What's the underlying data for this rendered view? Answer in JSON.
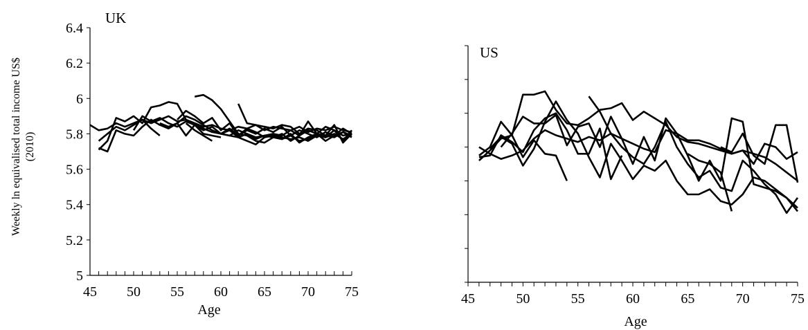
{
  "chart_data": [
    {
      "type": "line",
      "title": "UK",
      "xlabel": "Age",
      "ylabel": "Weekly ln equivalised total income US$ (2010)",
      "xlim": [
        45,
        75
      ],
      "ylim": [
        5,
        6.4
      ],
      "xticks": [
        "45",
        "50",
        "55",
        "60",
        "65",
        "70",
        "75"
      ],
      "yticks": [
        "5",
        "5.2",
        "5.4",
        "5.6",
        "5.8",
        "6",
        "6.2",
        "6.4"
      ],
      "grid": false,
      "series": [
        {
          "x": [
            45,
            46,
            47,
            48,
            49,
            50,
            51,
            52,
            53,
            54,
            55,
            56,
            57,
            58,
            59,
            60,
            61,
            62,
            63,
            64,
            65,
            66,
            67,
            68,
            69,
            70,
            71,
            72,
            73,
            74,
            75
          ],
          "values": [
            5.85,
            5.82,
            5.83,
            5.86,
            5.84,
            5.86,
            5.88,
            5.86,
            5.88,
            5.9,
            5.87,
            5.88,
            5.86,
            5.84,
            5.85,
            5.83,
            5.82,
            5.84,
            5.83,
            5.85,
            5.82,
            5.84,
            5.83,
            5.82,
            5.84,
            5.81,
            5.83,
            5.82,
            5.84,
            5.82,
            5.81
          ]
        },
        {
          "x": [
            46,
            47,
            48,
            49,
            50,
            51,
            52,
            53,
            54,
            55,
            56,
            57,
            58,
            59,
            60,
            61,
            62,
            63,
            64,
            65,
            66,
            67,
            68,
            69,
            70,
            71,
            72,
            73,
            74,
            75
          ],
          "values": [
            5.72,
            5.7,
            5.82,
            5.8,
            5.79,
            5.84,
            5.88,
            5.85,
            5.83,
            5.86,
            5.9,
            5.88,
            5.85,
            5.82,
            5.8,
            5.79,
            5.82,
            5.8,
            5.78,
            5.79,
            5.8,
            5.78,
            5.77,
            5.78,
            5.76,
            5.79,
            5.78,
            5.8,
            5.77,
            5.8
          ]
        },
        {
          "x": [
            46,
            47,
            48,
            49,
            50,
            51,
            52,
            53
          ],
          "values": [
            5.76,
            5.8,
            5.84,
            5.82,
            5.85,
            5.88,
            5.83,
            5.79
          ]
        },
        {
          "x": [
            46,
            47,
            48,
            49,
            50,
            51,
            52,
            53,
            54,
            55,
            56,
            57,
            58,
            59,
            60
          ],
          "values": [
            5.71,
            5.76,
            5.89,
            5.87,
            5.9,
            5.86,
            5.95,
            5.96,
            5.98,
            5.97,
            5.88,
            5.85,
            5.8,
            5.79,
            5.78
          ]
        },
        {
          "x": [
            50,
            51,
            52,
            53,
            54,
            55,
            56,
            57,
            58,
            59,
            60,
            61,
            62,
            63,
            64,
            65,
            66,
            67,
            68,
            69,
            70,
            71,
            72,
            73,
            74,
            75
          ],
          "values": [
            5.82,
            5.9,
            5.87,
            5.89,
            5.86,
            5.84,
            5.87,
            5.85,
            5.82,
            5.84,
            5.8,
            5.83,
            5.79,
            5.82,
            5.8,
            5.83,
            5.81,
            5.84,
            5.79,
            5.82,
            5.8,
            5.78,
            5.81,
            5.79,
            5.83,
            5.8
          ]
        },
        {
          "x": [
            53,
            54,
            55,
            56,
            57,
            58,
            59,
            60,
            61,
            62,
            63,
            64,
            65,
            66,
            67,
            68,
            69,
            70,
            71,
            72,
            73,
            74,
            75
          ],
          "values": [
            5.86,
            5.84,
            5.86,
            5.79,
            5.85,
            5.83,
            5.81,
            5.8,
            5.82,
            5.78,
            5.8,
            5.77,
            5.79,
            5.78,
            5.8,
            5.76,
            5.79,
            5.82,
            5.8,
            5.78,
            5.82,
            5.79,
            5.8
          ]
        },
        {
          "x": [
            55,
            56,
            57,
            58,
            59,
            60,
            61,
            62,
            63,
            64,
            65,
            66,
            67,
            68,
            69,
            70,
            71,
            72,
            73,
            74,
            75
          ],
          "values": [
            5.88,
            5.93,
            5.9,
            5.86,
            5.89,
            5.82,
            5.86,
            5.79,
            5.83,
            5.81,
            5.78,
            5.8,
            5.79,
            5.82,
            5.79,
            5.87,
            5.8,
            5.84,
            5.82,
            5.76,
            5.82
          ]
        },
        {
          "x": [
            57,
            58,
            59,
            60,
            61,
            62,
            63,
            64,
            65,
            66,
            67,
            68,
            69,
            70,
            71,
            72,
            73,
            74,
            75
          ],
          "values": [
            6.01,
            6.02,
            5.99,
            5.94,
            5.87,
            5.8,
            5.79,
            5.76,
            5.75,
            5.78,
            5.77,
            5.79,
            5.76,
            5.77,
            5.8,
            5.79,
            5.78,
            5.81,
            5.79
          ]
        },
        {
          "x": [
            56,
            57,
            58,
            59
          ],
          "values": [
            5.86,
            5.82,
            5.79,
            5.76
          ]
        },
        {
          "x": [
            62,
            63,
            64,
            65,
            66,
            67,
            68,
            69,
            70,
            71,
            72,
            73,
            74,
            75
          ],
          "values": [
            5.97,
            5.86,
            5.85,
            5.84,
            5.83,
            5.85,
            5.84,
            5.8,
            5.83,
            5.82,
            5.79,
            5.85,
            5.75,
            5.8
          ]
        },
        {
          "x": [
            60,
            61,
            62,
            63,
            64,
            65,
            66,
            67,
            68,
            69,
            70,
            71,
            72,
            73,
            74,
            75
          ],
          "values": [
            5.8,
            5.79,
            5.78,
            5.76,
            5.74,
            5.78,
            5.79,
            5.77,
            5.8,
            5.75,
            5.78,
            5.8,
            5.76,
            5.79,
            5.81,
            5.78
          ]
        }
      ]
    },
    {
      "type": "line",
      "title": "US",
      "xlabel": "Age",
      "ylabel": "",
      "xlim": [
        45,
        75
      ],
      "ylim": [
        5,
        6.4
      ],
      "xticks": [
        "45",
        "50",
        "55",
        "60",
        "65",
        "70",
        "75"
      ],
      "grid": false,
      "series": [
        {
          "x": [
            46,
            47,
            48,
            49,
            50,
            51,
            52,
            53,
            54,
            55,
            56,
            57,
            58,
            59,
            60,
            61,
            62,
            63,
            64,
            65,
            66,
            67,
            68,
            69,
            70,
            71,
            72,
            73,
            74,
            75
          ],
          "values": [
            5.8,
            5.76,
            5.73,
            5.75,
            5.78,
            5.85,
            5.9,
            5.87,
            5.85,
            5.83,
            5.86,
            5.84,
            5.88,
            5.85,
            5.82,
            5.79,
            5.77,
            5.9,
            5.88,
            5.84,
            5.84,
            5.82,
            5.79,
            5.76,
            5.78,
            5.76,
            5.74,
            5.7,
            5.65,
            5.6
          ]
        },
        {
          "x": [
            46,
            47,
            48,
            49,
            50,
            51,
            52,
            53,
            54,
            55,
            56,
            57,
            58,
            59,
            60,
            61,
            62,
            63,
            64,
            65,
            66,
            67,
            68,
            69,
            70,
            71,
            72,
            73,
            74,
            75
          ],
          "values": [
            5.72,
            5.78,
            5.85,
            5.87,
            6.11,
            6.11,
            6.13,
            6.02,
            5.94,
            5.93,
            5.97,
            6.02,
            6.03,
            6.06,
            5.96,
            6.01,
            5.97,
            5.93,
            5.86,
            5.83,
            5.82,
            5.8,
            5.78,
            5.76,
            5.78,
            5.7,
            5.82,
            5.8,
            5.73,
            5.77
          ]
        },
        {
          "x": [
            46,
            47,
            48,
            49,
            50,
            51,
            52,
            53,
            54
          ],
          "values": [
            5.75,
            5.8,
            5.95,
            5.87,
            5.74,
            5.84,
            5.76,
            5.75,
            5.6
          ]
        },
        {
          "x": [
            46,
            47,
            48,
            49,
            50,
            51,
            52,
            53,
            54,
            55,
            56,
            57,
            58,
            59
          ],
          "values": [
            5.74,
            5.75,
            5.87,
            5.83,
            5.77,
            5.9,
            5.97,
            6.0,
            5.9,
            5.76,
            5.76,
            5.91,
            5.61,
            5.75
          ]
        },
        {
          "x": [
            47,
            48,
            49,
            50,
            51,
            52,
            53,
            54,
            55,
            56,
            57,
            58,
            59,
            60,
            61,
            62,
            63,
            64,
            65,
            66,
            67,
            68,
            69,
            70,
            71,
            72,
            73,
            74,
            75
          ],
          "values": [
            5.79,
            5.86,
            5.82,
            5.69,
            5.79,
            5.95,
            6.07,
            5.96,
            5.88,
            5.74,
            5.62,
            5.82,
            5.72,
            5.61,
            5.69,
            5.66,
            5.72,
            5.6,
            5.52,
            5.52,
            5.55,
            5.48,
            5.46,
            5.52,
            5.62,
            5.6,
            5.55,
            5.5,
            5.42
          ]
        },
        {
          "x": [
            48,
            49,
            50,
            51,
            52,
            53,
            54,
            55,
            56,
            57,
            58,
            59,
            60,
            61,
            62,
            63,
            64,
            65,
            66,
            67,
            68,
            69,
            70,
            71,
            72,
            73,
            74,
            75
          ],
          "values": [
            5.8,
            5.88,
            5.98,
            5.94,
            5.94,
            5.99,
            5.81,
            5.92,
            5.94,
            5.8,
            5.98,
            5.85,
            5.7,
            5.86,
            5.72,
            5.97,
            5.88,
            5.75,
            5.6,
            5.72,
            5.6,
            5.97,
            5.95,
            5.58,
            5.56,
            5.54,
            5.5,
            5.44
          ]
        },
        {
          "x": [
            56,
            57,
            58,
            59,
            60,
            61,
            62,
            63,
            64,
            65,
            66,
            67,
            68,
            69,
            70,
            71,
            72,
            73,
            74,
            75
          ],
          "values": [
            6.1,
            6.01,
            5.88,
            5.8,
            5.74,
            5.7,
            5.8,
            5.95,
            5.8,
            5.7,
            5.62,
            5.66,
            5.56,
            5.54,
            5.72,
            5.66,
            5.58,
            5.52,
            5.41,
            5.5
          ]
        },
        {
          "x": [
            68,
            69,
            70,
            71,
            72,
            73,
            74,
            75
          ],
          "values": [
            5.8,
            5.77,
            5.88,
            5.75,
            5.7,
            5.93,
            5.93,
            5.59
          ]
        },
        {
          "x": [
            65,
            66,
            67,
            68,
            69
          ],
          "values": [
            5.76,
            5.72,
            5.7,
            5.65,
            5.42
          ]
        }
      ]
    }
  ]
}
